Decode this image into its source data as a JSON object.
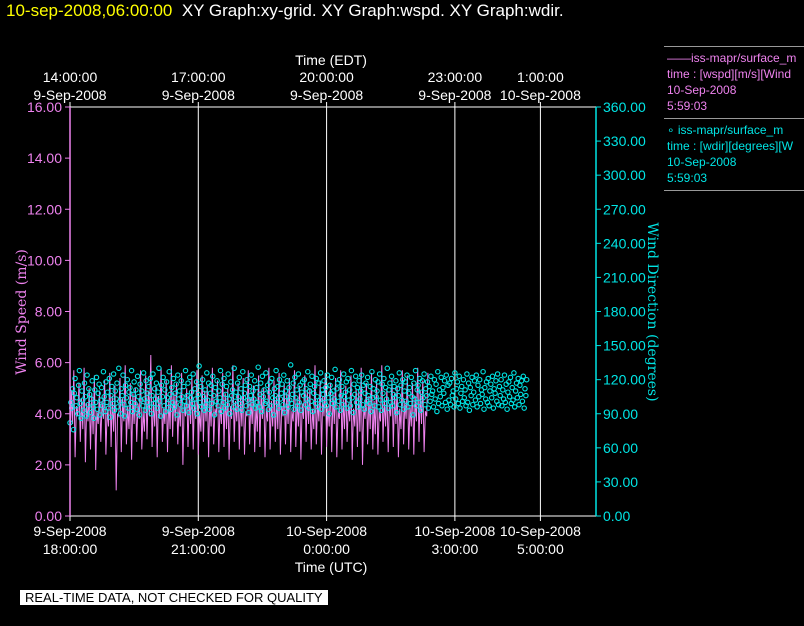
{
  "title": {
    "date": "10-sep-2008,06:00:00",
    "rest": "XY Graph:xy-grid.  XY Graph:wspd.  XY Graph:wdir."
  },
  "legend": [
    {
      "symbol": "line",
      "color": "#ee82ee",
      "lines": [
        "——iss-mapr/surface_m",
        "time : [wspd][m/s][Wind",
        "10-Sep-2008",
        "5:59:03"
      ]
    },
    {
      "symbol": "circle",
      "color": "#00e5e5",
      "lines": [
        "∘ iss-mapr/surface_m",
        "time : [wdir][degrees][W",
        "10-Sep-2008",
        "5:59:03"
      ]
    }
  ],
  "notice": "REAL-TIME DATA, NOT CHECKED FOR QUALITY",
  "colors": {
    "background": "#000000",
    "axes": "#ffffff",
    "left_axis": "#ee82ee",
    "right_axis": "#00e5e5",
    "grid": "#ffffff",
    "title_date": "#ffff00"
  },
  "chart_data": {
    "type": "line",
    "x_unit": "hours",
    "xlim": [
      18.0,
      30.3
    ],
    "grid": {
      "vertical": true,
      "horizontal": false
    },
    "legend_position": "right",
    "top_axis": {
      "label": "Time (EDT)",
      "ticks": [
        {
          "x": 18,
          "line1": "14:00:00",
          "line2": "9-Sep-2008"
        },
        {
          "x": 21,
          "line1": "17:00:00",
          "line2": "9-Sep-2008"
        },
        {
          "x": 24,
          "line1": "20:00:00",
          "line2": "9-Sep-2008"
        },
        {
          "x": 27,
          "line1": "23:00:00",
          "line2": "9-Sep-2008"
        },
        {
          "x": 29,
          "line1": "1:00:00",
          "line2": "10-Sep-2008"
        }
      ]
    },
    "bottom_axis": {
      "label": "Time (UTC)",
      "ticks": [
        {
          "x": 18,
          "line1": "9-Sep-2008",
          "line2": "18:00:00"
        },
        {
          "x": 21,
          "line1": "9-Sep-2008",
          "line2": "21:00:00"
        },
        {
          "x": 24,
          "line1": "10-Sep-2008",
          "line2": "0:00:00"
        },
        {
          "x": 27,
          "line1": "10-Sep-2008",
          "line2": "3:00:00"
        },
        {
          "x": 29,
          "line1": "10-Sep-2008",
          "line2": "5:00:00"
        }
      ]
    },
    "left_axis": {
      "label": "Wind Speed (m/s)",
      "ylim": [
        0,
        16
      ],
      "ticks": [
        "0.00",
        "2.00",
        "4.00",
        "6.00",
        "8.00",
        "10.00",
        "12.00",
        "14.00",
        "16.00"
      ]
    },
    "right_axis": {
      "label": "Wind Direction (degrees)",
      "ylim": [
        0,
        360
      ],
      "ticks": [
        "0.00",
        "30.00",
        "60.00",
        "90.00",
        "120.00",
        "150.00",
        "180.00",
        "210.00",
        "240.00",
        "270.00",
        "300.00",
        "330.00",
        "360.00"
      ]
    },
    "series": [
      {
        "kind": "line",
        "axis": "left",
        "color": "#ee82ee",
        "x_start": 18.0,
        "x_step": 0.03,
        "values": [
          2.8,
          4.9,
          3.6,
          5.7,
          2.3,
          4.3,
          3.9,
          5.2,
          2.9,
          4.6,
          3.4,
          5.8,
          2.1,
          4.4,
          3.7,
          5.0,
          2.6,
          4.8,
          3.2,
          5.5,
          1.8,
          4.1,
          3.6,
          4.9,
          2.9,
          4.5,
          3.8,
          5.3,
          2.4,
          4.2,
          3.5,
          5.6,
          2.7,
          4.7,
          3.3,
          5.1,
          1.0,
          4.0,
          3.9,
          5.4,
          2.5,
          4.6,
          3.7,
          5.9,
          2.8,
          4.3,
          3.4,
          5.2,
          2.2,
          4.8,
          3.6,
          5.0,
          2.9,
          4.4,
          3.8,
          5.7,
          2.6,
          4.1,
          3.3,
          5.5,
          3.0,
          4.9,
          3.9,
          6.3,
          2.7,
          4.5,
          3.5,
          5.1,
          2.3,
          4.7,
          3.8,
          5.8,
          2.9,
          4.2,
          3.6,
          5.3,
          2.5,
          4.6,
          3.4,
          5.9,
          3.1,
          4.8,
          3.7,
          5.2,
          2.8,
          4.3,
          3.5,
          5.6,
          2.0,
          4.4,
          3.9,
          5.0,
          2.7,
          4.7,
          3.6,
          5.4,
          2.6,
          4.5,
          3.8,
          5.7,
          2.4,
          4.1,
          3.3,
          5.5,
          2.9,
          4.9,
          3.7,
          5.1,
          2.3,
          4.6,
          3.5,
          5.8,
          2.8,
          4.2,
          3.9,
          5.3,
          2.5,
          4.4,
          3.6,
          5.6,
          2.7,
          4.8,
          3.4,
          5.0,
          2.2,
          4.3,
          3.8,
          5.9,
          2.9,
          4.5,
          3.7,
          5.2,
          2.6,
          4.7,
          3.5,
          5.4,
          2.4,
          4.1,
          3.9,
          5.7,
          2.8,
          4.6,
          3.6,
          5.1,
          2.5,
          4.4,
          3.3,
          5.5,
          2.7,
          4.9,
          3.8,
          5.0,
          2.3,
          4.2,
          3.7,
          5.8,
          2.6,
          4.5,
          3.5,
          5.3,
          2.9,
          4.7,
          3.4,
          5.6,
          2.4,
          4.3,
          3.9,
          5.2,
          2.8,
          4.8,
          3.6,
          5.4,
          2.5,
          4.1,
          3.7,
          5.7,
          2.7,
          4.6,
          3.5,
          5.1,
          2.2,
          4.4,
          3.8,
          5.5,
          2.9,
          4.9,
          3.6,
          5.0,
          2.6,
          4.2,
          3.4,
          5.9,
          2.8,
          4.5,
          3.7,
          5.3,
          2.4,
          4.7,
          3.9,
          5.6,
          2.7,
          4.3,
          3.5,
          5.2,
          2.5,
          4.8,
          3.6,
          5.4,
          2.3,
          4.1,
          3.8,
          5.7,
          2.6,
          4.6,
          3.4,
          5.1,
          2.9,
          4.4,
          3.7,
          5.5,
          2.2,
          4.2,
          3.5,
          5.0,
          2.7,
          4.9,
          3.3,
          5.8,
          2.0,
          4.3,
          3.8,
          5.2,
          2.8,
          4.7,
          3.4,
          5.6,
          2.6,
          4.5,
          3.2,
          5.3,
          2.4,
          4.1,
          3.7,
          5.9,
          2.9,
          4.6,
          3.5,
          5.0,
          2.5,
          4.4,
          3.9,
          5.4,
          2.7,
          4.8,
          3.6,
          5.1,
          2.3,
          4.2,
          3.4,
          5.7,
          2.8,
          4.5,
          3.8,
          5.5,
          2.6,
          4.3,
          3.5,
          5.2,
          2.4,
          4.7,
          3.7,
          5.8,
          2.9,
          4.9,
          3.6,
          5.3,
          2.5,
          4.1,
          3.9,
          5.6
        ]
      },
      {
        "kind": "scatter",
        "axis": "right",
        "color": "#00e5e5",
        "x_start": 18.0,
        "x_step": 0.02,
        "values": [
          82,
          100,
          95,
          112,
          76,
          108,
          121,
          97,
          104,
          90,
          115,
          128,
          99,
          86,
          110,
          102,
          93,
          117,
          105,
          88,
          124,
          98,
          112,
          107,
          91,
          103,
          119,
          96,
          86,
          111,
          100,
          122,
          94,
          108,
          116,
          89,
          102,
          113,
          97,
          127,
          105,
          92,
          118,
          100,
          109,
          95,
          121,
          87,
          106,
          114,
          99,
          125,
          93,
          110,
          103,
          117,
          96,
          130,
          101,
          90,
          112,
          106,
          124,
          98,
          88,
          115,
          104,
          120,
          95,
          109,
          113,
          100,
          128,
          92,
          107,
          118,
          99,
          111,
          94,
          123,
          105,
          89,
          116,
          102,
          110,
          97,
          126,
          103,
          93,
          119,
          108,
          100,
          114,
          96,
          121,
          90,
          106,
          125,
          99,
          112,
          103,
          117,
          95,
          109,
          130,
          101,
          88,
          115,
          105,
          122,
          97,
          111,
          92,
          118,
          104,
          99,
          127,
          107,
          94,
          113,
          100,
          121,
          96,
          108,
          116,
          89,
          124,
          103,
          110,
          98,
          119,
          105,
          93,
          114,
          101,
          128,
          97,
          106,
          117,
          91,
          122,
          104,
          109,
          99,
          125,
          95,
          112,
          103,
          118,
          90,
          107,
          132,
          100,
          114,
          96,
          120,
          105,
          93,
          111,
          98,
          126,
          102,
          117,
          94,
          108,
          115,
          99,
          123,
          106,
          89,
          113,
          101,
          119,
          97,
          110,
          104,
          128,
          92,
          116,
          100,
          121,
          95,
          107,
          114,
          98,
          125,
          103,
          90,
          118,
          106,
          111,
          96,
          130,
          101,
          109,
          94,
          117,
          105,
          122,
          99,
          112,
          93,
          127,
          104,
          108,
          115,
          97,
          120,
          102,
          91,
          114,
          106,
          124,
          98,
          110,
          103,
          119,
          95,
          113,
          100,
          131,
          96,
          107,
          117,
          92,
          123,
          105,
          111,
          99,
          126,
          101,
          115,
          94,
          109,
          118,
          97,
          121,
          104,
          89,
          112,
          106,
          128,
          100,
          114,
          95,
          120,
          103,
          108,
          116,
          98,
          124,
          91,
          110,
          105,
          119,
          96,
          113,
          102,
          133,
          99,
          107,
          117,
          94,
          122,
          104,
          111,
          97,
          125,
          100,
          115,
          93,
          109,
          118,
          106,
          120,
          98,
          112,
          103,
          127,
          95,
          110,
          116,
          101,
          123,
          92,
          108,
          114,
          99,
          121,
          105,
          96,
          117,
          102,
          126,
          94,
          111,
          107,
          119,
          100,
          113,
          97,
          124,
          104,
          90,
          115,
          108,
          122,
          99,
          110,
          103,
          129,
          96,
          112,
          117,
          101,
          120,
          93,
          106,
          114,
          98,
          125,
          105,
          109,
          118,
          95,
          121,
          102,
          111,
          97,
          128,
          104,
          91,
          116,
          107,
          123,
          100,
          113,
          96,
          119,
          103,
          110,
          124,
          98,
          115,
          94,
          108,
          117,
          101,
          122,
          106,
          99,
          114,
          92,
          127,
          104,
          112,
          97,
          120,
          105,
          110,
          118,
          96,
          125,
          102,
          93,
          116,
          108,
          121,
          99,
          113,
          103,
          130,
          95,
          111,
          117,
          100,
          123,
          97,
          107,
          114,
          104,
          119,
          91,
          112,
          106,
          126,
          98,
          115,
          102,
          120,
          94,
          110,
          118,
          101,
          124,
          96,
          108,
          113,
          99,
          122,
          105,
          89,
          117,
          103,
          128,
          97,
          111,
          115,
          100,
          121,
          93,
          109,
          119,
          104,
          125,
          98,
          112,
          106,
          118,
          95,
          114,
          101,
          123,
          107,
          110,
          96,
          120,
          103,
          116,
          92,
          127,
          99,
          111,
          105,
          122,
          97,
          113,
          108,
          119,
          100,
          124,
          94,
          115,
          102,
          117,
          98,
          121,
          106,
          110,
          96,
          126,
          103,
          112,
          118,
          99,
          123,
          95,
          108,
          114,
          101,
          120,
          104,
          111,
          97,
          125,
          100,
          117,
          93,
          113,
          106,
          122,
          98,
          109,
          119,
          102,
          124,
          96,
          115,
          105,
          120,
          99,
          111,
          107,
          127,
          94,
          113,
          103,
          118,
          100,
          121,
          97,
          110,
          116,
          104,
          123,
          95,
          112,
          108,
          119,
          101,
          125,
          98,
          114,
          106,
          120,
          97,
          111,
          103,
          124,
          100,
          116,
          94,
          109,
          118,
          105,
          122,
          99,
          113,
          102,
          126,
          96,
          110,
          117,
          104,
          121,
          98,
          115,
          107,
          119,
          101,
          123,
          95,
          112,
          106,
          120
        ]
      }
    ]
  }
}
